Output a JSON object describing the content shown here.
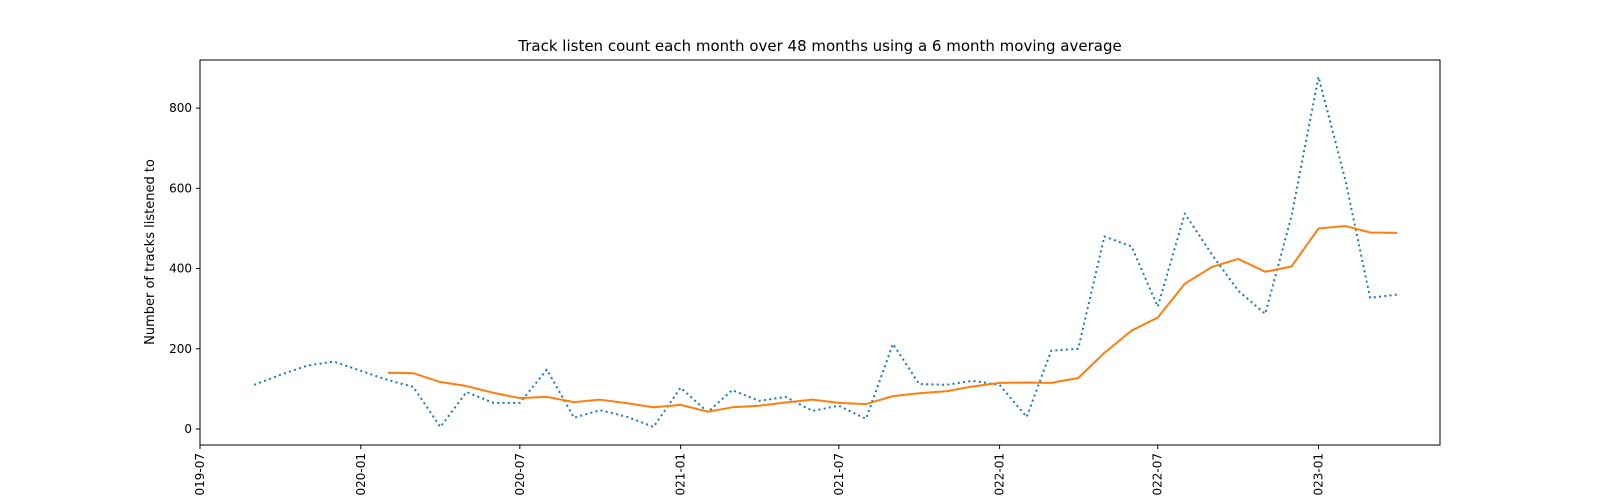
{
  "chart_data": {
    "type": "line",
    "title": "Track listen count each month over 48 months using a 6 month moving average",
    "xlabel": "",
    "ylabel": "Number of tracks listened to",
    "ylim": [
      -40,
      920
    ],
    "xlim": [
      "2019-07-01",
      "2023-05-20"
    ],
    "grid": false,
    "legend": "none",
    "x_ticks": [
      "2019-07",
      "2020-01",
      "2020-07",
      "2021-01",
      "2021-07",
      "2022-01",
      "2022-07",
      "2023-01"
    ],
    "x_tick_labels": [
      "019-07",
      "020-01",
      "020-07",
      "021-01",
      "021-07",
      "022-01",
      "022-07",
      "023-01"
    ],
    "y_ticks": [
      0,
      200,
      400,
      600,
      800
    ],
    "y_tick_labels": [
      "0",
      "200",
      "400",
      "600",
      "800"
    ],
    "x": [
      "2019-09-01",
      "2019-10-01",
      "2019-11-01",
      "2019-12-01",
      "2020-01-01",
      "2020-02-01",
      "2020-03-01",
      "2020-04-01",
      "2020-05-01",
      "2020-06-01",
      "2020-07-01",
      "2020-08-01",
      "2020-09-01",
      "2020-10-01",
      "2020-11-01",
      "2020-12-01",
      "2021-01-01",
      "2021-02-01",
      "2021-03-01",
      "2021-04-01",
      "2021-05-01",
      "2021-06-01",
      "2021-07-01",
      "2021-08-01",
      "2021-09-01",
      "2021-10-01",
      "2021-11-01",
      "2021-12-01",
      "2022-01-01",
      "2022-02-01",
      "2022-03-01",
      "2022-04-01",
      "2022-05-01",
      "2022-06-01",
      "2022-07-01",
      "2022-08-01",
      "2022-09-01",
      "2022-10-01",
      "2022-11-01",
      "2022-12-01",
      "2023-01-01",
      "2023-02-01",
      "2023-03-01",
      "2023-04-01"
    ],
    "series": [
      {
        "name": "",
        "style": "dotted",
        "color": "#1f77b4",
        "values": [
          110,
          135,
          158,
          168,
          145,
          122,
          105,
          5,
          92,
          65,
          65,
          148,
          28,
          47,
          30,
          5,
          103,
          42,
          97,
          70,
          80,
          45,
          58,
          25,
          212,
          112,
          110,
          120,
          110,
          30,
          195,
          200,
          480,
          455,
          305,
          537,
          435,
          345,
          287,
          530,
          878,
          618,
          327,
          335
        ]
      },
      {
        "name": "",
        "style": "solid",
        "color": "#ff7f0e",
        "values": [
          null,
          null,
          null,
          null,
          null,
          140,
          139,
          117,
          107,
          90,
          77,
          80,
          67,
          73,
          64,
          54,
          60,
          43,
          54,
          58,
          66,
          73,
          65,
          62,
          82,
          89,
          94,
          106,
          115,
          116,
          115,
          127,
          190,
          245,
          278,
          362,
          404,
          424,
          392,
          405,
          500,
          506,
          490,
          489
        ]
      }
    ]
  }
}
